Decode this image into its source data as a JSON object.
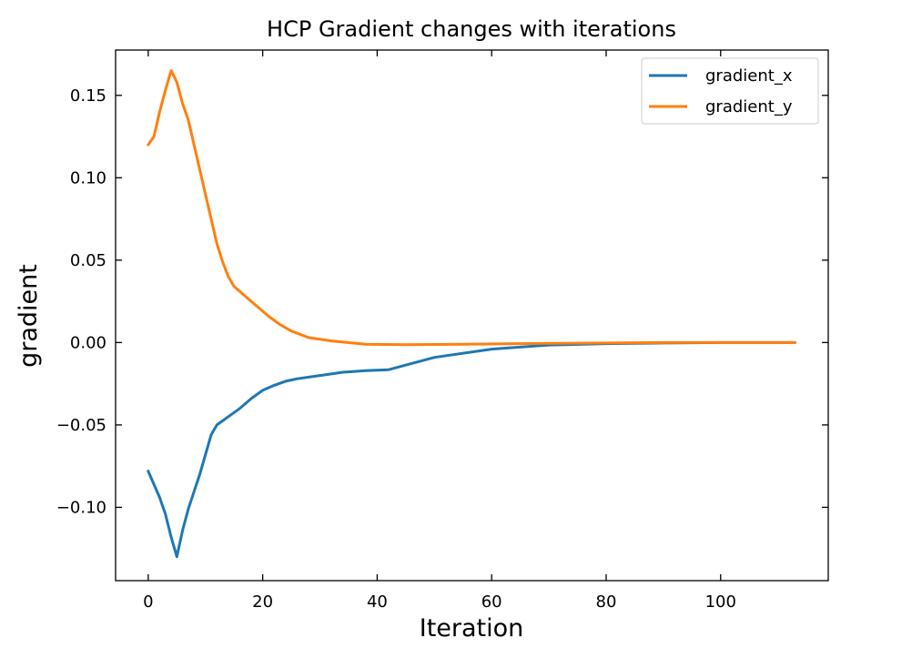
{
  "chart_data": {
    "type": "line",
    "title": "HCP Gradient changes with iterations",
    "xlabel": "Iteration",
    "ylabel": "gradient",
    "xlim": [
      -5.7,
      118.8
    ],
    "ylim": [
      -0.1445,
      0.1775
    ],
    "xticks": [
      0,
      20,
      40,
      60,
      80,
      100
    ],
    "xtick_labels": [
      "0",
      "20",
      "40",
      "60",
      "80",
      "100"
    ],
    "yticks": [
      -0.1,
      -0.05,
      0.0,
      0.05,
      0.1,
      0.15
    ],
    "ytick_labels": [
      "−0.10",
      "−0.05",
      "0.00",
      "0.05",
      "0.10",
      "0.15"
    ],
    "grid": false,
    "legend_position": "top-right",
    "series": [
      {
        "name": "gradient_x",
        "color": "#1f77b4",
        "x": [
          0,
          2,
          3,
          4,
          5,
          6,
          7,
          9,
          11,
          12,
          14,
          16,
          18,
          20,
          22,
          24,
          26,
          30,
          34,
          38,
          42,
          50,
          60,
          70,
          80,
          90,
          100,
          113
        ],
        "y": [
          -0.078,
          -0.094,
          -0.104,
          -0.118,
          -0.13,
          -0.114,
          -0.101,
          -0.08,
          -0.056,
          -0.05,
          -0.045,
          -0.04,
          -0.034,
          -0.029,
          -0.026,
          -0.0235,
          -0.022,
          -0.02,
          -0.018,
          -0.017,
          -0.0165,
          -0.009,
          -0.004,
          -0.0015,
          -0.0007,
          -0.0003,
          0.0,
          0.0
        ]
      },
      {
        "name": "gradient_y",
        "color": "#ff7f0e",
        "x": [
          0,
          1,
          2,
          3,
          4,
          5,
          6,
          7,
          8,
          9,
          10,
          11,
          12,
          13,
          14,
          15,
          17,
          19,
          21,
          23,
          25,
          28,
          32,
          38,
          45,
          55,
          70,
          90,
          113
        ],
        "y": [
          0.12,
          0.125,
          0.14,
          0.153,
          0.165,
          0.158,
          0.145,
          0.135,
          0.12,
          0.105,
          0.09,
          0.075,
          0.06,
          0.049,
          0.04,
          0.034,
          0.028,
          0.022,
          0.016,
          0.011,
          0.007,
          0.003,
          0.001,
          -0.001,
          -0.0013,
          -0.001,
          -0.0005,
          0.0,
          0.0
        ]
      }
    ]
  }
}
